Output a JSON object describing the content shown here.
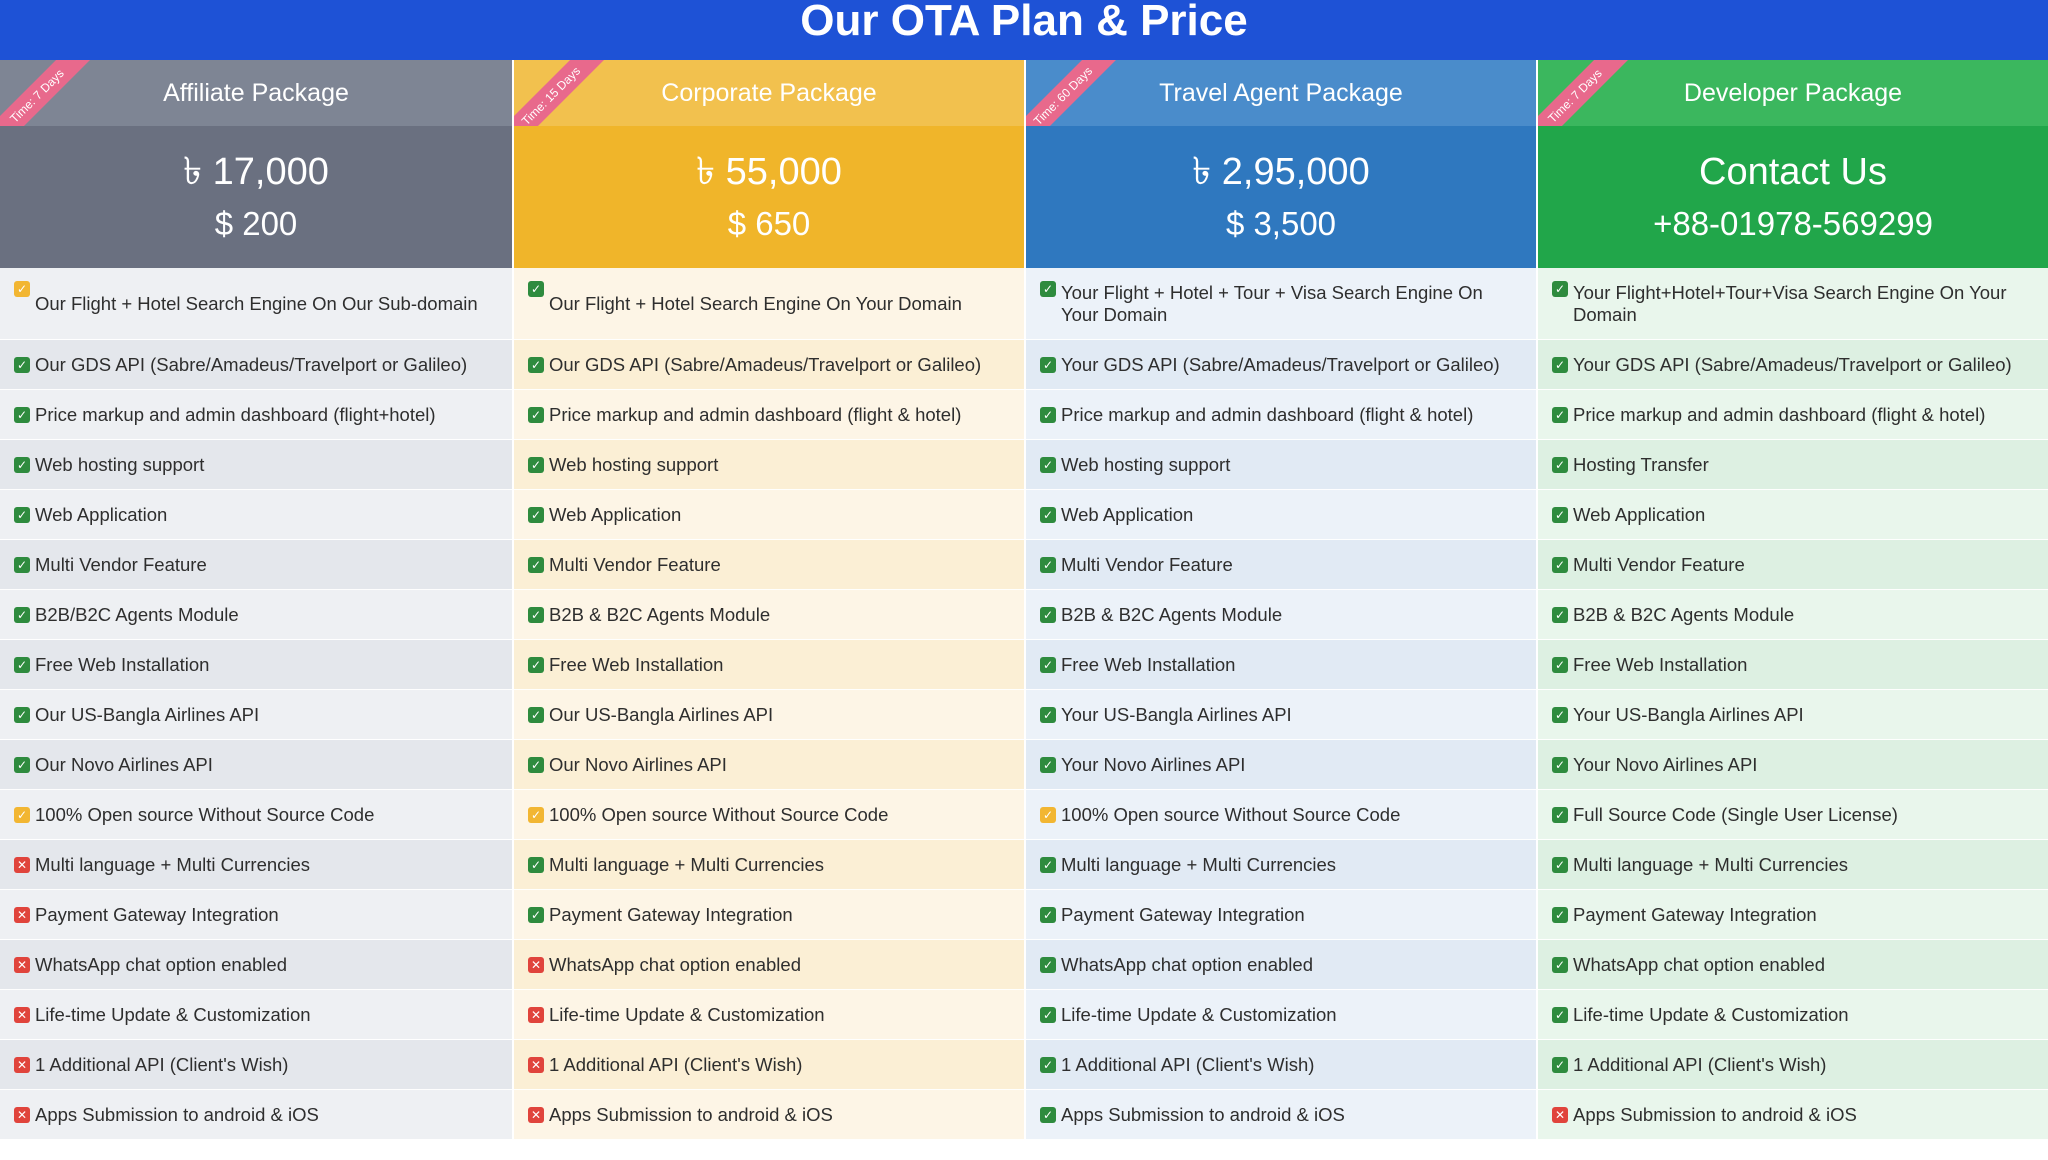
{
  "title": "Our OTA Plan & Price",
  "packages": [
    {
      "name": "Affiliate Package",
      "ribbon": "Time: 7 Days",
      "price_primary": "৳ 17,000",
      "price_secondary": "$ 200",
      "colors": {
        "header": "#7e8594",
        "price": "#6a7080",
        "stripe_a": "#eef0f3",
        "stripe_b": "#e4e7ec"
      },
      "features": [
        {
          "text": "Our Flight + Hotel Search Engine On Our Sub-domain",
          "status": "partial"
        },
        {
          "text": "Our GDS API (Sabre/Amadeus/Travelport or Galileo)",
          "status": "check"
        },
        {
          "text": "Price markup and admin dashboard (flight+hotel)",
          "status": "check"
        },
        {
          "text": "Web hosting support",
          "status": "check"
        },
        {
          "text": "Web Application",
          "status": "check"
        },
        {
          "text": "Multi Vendor Feature",
          "status": "check"
        },
        {
          "text": "B2B/B2C Agents Module",
          "status": "check"
        },
        {
          "text": "Free Web Installation",
          "status": "check"
        },
        {
          "text": "Our US-Bangla Airlines API",
          "status": "check"
        },
        {
          "text": "Our Novo Airlines API",
          "status": "check"
        },
        {
          "text": "100% Open source Without Source Code",
          "status": "partial"
        },
        {
          "text": "Multi language + Multi Currencies",
          "status": "cross"
        },
        {
          "text": "Payment Gateway Integration",
          "status": "cross"
        },
        {
          "text": "WhatsApp chat option enabled",
          "status": "cross"
        },
        {
          "text": "Life-time Update & Customization",
          "status": "cross"
        },
        {
          "text": "1 Additional API (Client's Wish)",
          "status": "cross"
        },
        {
          "text": "Apps Submission to android & iOS",
          "status": "cross"
        }
      ]
    },
    {
      "name": "Corporate Package",
      "ribbon": "Time: 15 Days",
      "price_primary": "৳ 55,000",
      "price_secondary": "$ 650",
      "colors": {
        "header": "#f2c14e",
        "price": "#f0b52a",
        "stripe_a": "#fdf5e6",
        "stripe_b": "#fbefd5"
      },
      "features": [
        {
          "text": "Our Flight + Hotel Search Engine On Your Domain",
          "status": "check"
        },
        {
          "text": "Our GDS API (Sabre/Amadeus/Travelport or Galileo)",
          "status": "check"
        },
        {
          "text": "Price markup and admin dashboard (flight & hotel)",
          "status": "check"
        },
        {
          "text": "Web hosting support",
          "status": "check"
        },
        {
          "text": "Web Application",
          "status": "check"
        },
        {
          "text": "Multi Vendor Feature",
          "status": "check"
        },
        {
          "text": "B2B & B2C Agents Module",
          "status": "check"
        },
        {
          "text": "Free Web Installation",
          "status": "check"
        },
        {
          "text": "Our US-Bangla Airlines API",
          "status": "check"
        },
        {
          "text": "Our Novo Airlines API",
          "status": "check"
        },
        {
          "text": "100% Open source Without Source Code",
          "status": "partial"
        },
        {
          "text": "Multi language + Multi Currencies",
          "status": "check"
        },
        {
          "text": "Payment Gateway Integration",
          "status": "check"
        },
        {
          "text": "WhatsApp chat option enabled",
          "status": "cross"
        },
        {
          "text": "Life-time Update & Customization",
          "status": "cross"
        },
        {
          "text": "1 Additional API (Client's Wish)",
          "status": "cross"
        },
        {
          "text": "Apps Submission to android & iOS",
          "status": "cross"
        }
      ]
    },
    {
      "name": "Travel Agent Package",
      "ribbon": "Time: 60 Days",
      "price_primary": "৳ 2,95,000",
      "price_secondary": "$ 3,500",
      "colors": {
        "header": "#4a8ccb",
        "price": "#2f78bf",
        "stripe_a": "#ecf2f9",
        "stripe_b": "#e1eaf4"
      },
      "features": [
        {
          "text": "Your Flight + Hotel + Tour + Visa Search Engine On Your Domain",
          "status": "check"
        },
        {
          "text": "Your GDS API (Sabre/Amadeus/Travelport or Galileo)",
          "status": "check"
        },
        {
          "text": "Price markup and admin dashboard (flight & hotel)",
          "status": "check"
        },
        {
          "text": "Web hosting support",
          "status": "check"
        },
        {
          "text": "Web Application",
          "status": "check"
        },
        {
          "text": "Multi Vendor Feature",
          "status": "check"
        },
        {
          "text": "B2B & B2C Agents Module",
          "status": "check"
        },
        {
          "text": "Free Web Installation",
          "status": "check"
        },
        {
          "text": "Your US-Bangla Airlines API",
          "status": "check"
        },
        {
          "text": "Your Novo Airlines API",
          "status": "check"
        },
        {
          "text": "100% Open source Without Source Code",
          "status": "partial"
        },
        {
          "text": "Multi language + Multi Currencies",
          "status": "check"
        },
        {
          "text": "Payment Gateway Integration",
          "status": "check"
        },
        {
          "text": "WhatsApp chat option enabled",
          "status": "check"
        },
        {
          "text": "Life-time Update & Customization",
          "status": "check"
        },
        {
          "text": "1 Additional API (Client's Wish)",
          "status": "check"
        },
        {
          "text": "Apps Submission to android & iOS",
          "status": "check"
        }
      ]
    },
    {
      "name": "Developer Package",
      "ribbon": "Time: 7 Days",
      "price_primary": "Contact Us",
      "price_secondary": "+88-01978-569299",
      "colors": {
        "header": "#3bb75e",
        "price": "#21a64a",
        "stripe_a": "#e9f6ec",
        "stripe_b": "#ddf0e2"
      },
      "features": [
        {
          "text": "Your Flight+Hotel+Tour+Visa Search Engine On Your Domain",
          "status": "check"
        },
        {
          "text": "Your GDS API (Sabre/Amadeus/Travelport or Galileo)",
          "status": "check"
        },
        {
          "text": "Price markup and admin dashboard (flight & hotel)",
          "status": "check"
        },
        {
          "text": "Hosting Transfer",
          "status": "check"
        },
        {
          "text": "Web Application",
          "status": "check"
        },
        {
          "text": "Multi Vendor Feature",
          "status": "check"
        },
        {
          "text": "B2B & B2C Agents Module",
          "status": "check"
        },
        {
          "text": "Free Web Installation",
          "status": "check"
        },
        {
          "text": "Your US-Bangla Airlines API",
          "status": "check"
        },
        {
          "text": "Your Novo Airlines API",
          "status": "check"
        },
        {
          "text": "Full Source Code (Single User License)",
          "status": "check"
        },
        {
          "text": "Multi language + Multi Currencies",
          "status": "check"
        },
        {
          "text": "Payment Gateway Integration",
          "status": "check"
        },
        {
          "text": "WhatsApp chat option enabled",
          "status": "check"
        },
        {
          "text": "Life-time Update & Customization",
          "status": "check"
        },
        {
          "text": "1 Additional API (Client's Wish)",
          "status": "check"
        },
        {
          "text": "Apps Submission to android & iOS",
          "status": "cross"
        }
      ]
    }
  ]
}
